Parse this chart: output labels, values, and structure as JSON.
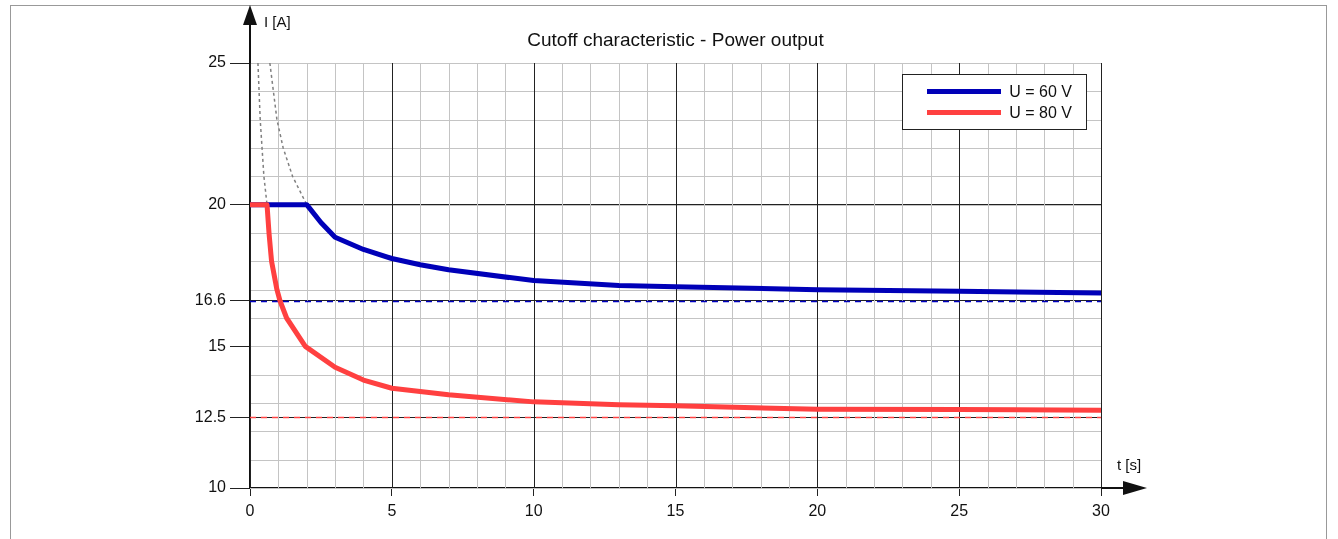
{
  "chart_data": {
    "type": "line",
    "title": "Cutoff characteristic - Power output",
    "xlabel": "t [s]",
    "ylabel": "I [A]",
    "xlim": [
      0,
      30
    ],
    "xticks": [
      0,
      5,
      10,
      15,
      20,
      25,
      30
    ],
    "ylim": [
      10,
      25
    ],
    "yticks": [
      10,
      12.5,
      15,
      16.6,
      20,
      25
    ],
    "grid": true,
    "legend": "top right",
    "marker": "none",
    "series": [
      {
        "name": "U = 60 V",
        "color": "#0000b8",
        "line_style": "solid",
        "x": [
          0,
          2,
          2.5,
          3,
          4,
          5,
          6,
          7,
          10,
          13,
          15,
          20,
          25,
          30
        ],
        "values": [
          20,
          20,
          19.37,
          18.85,
          18.42,
          18.1,
          17.88,
          17.7,
          17.32,
          17.15,
          17.1,
          17.0,
          16.94,
          16.88
        ]
      },
      {
        "name": "U = 80 V",
        "color": "#ff4040",
        "line_style": "solid",
        "x": [
          0,
          0.6,
          0.67,
          0.76,
          0.95,
          1.06,
          1.29,
          1.95,
          3,
          4,
          5,
          7,
          10,
          13,
          15,
          20,
          25,
          30
        ],
        "values": [
          20,
          20,
          19,
          18,
          17,
          16.6,
          16,
          15,
          14.26,
          13.81,
          13.52,
          13.29,
          13.04,
          12.94,
          12.9,
          12.78,
          12.77,
          12.74
        ]
      },
      {
        "color": "#808080",
        "line_style": "dotted",
        "x": [
          0.7,
          0.95,
          1.17,
          1.5,
          2
        ],
        "values": [
          25,
          23,
          22,
          21,
          20
        ]
      },
      {
        "color": "#808080",
        "line_style": "dotted",
        "x": [
          0.28,
          0.36,
          0.49,
          0.6
        ],
        "values": [
          25,
          23,
          21,
          20
        ]
      }
    ],
    "ref_lines": [
      {
        "axis": "y",
        "value": 16.6,
        "color": "#0000c0",
        "line_style": "dashed"
      },
      {
        "axis": "y",
        "value": 12.5,
        "color": "#ff4444",
        "line_style": "dashed"
      }
    ]
  }
}
